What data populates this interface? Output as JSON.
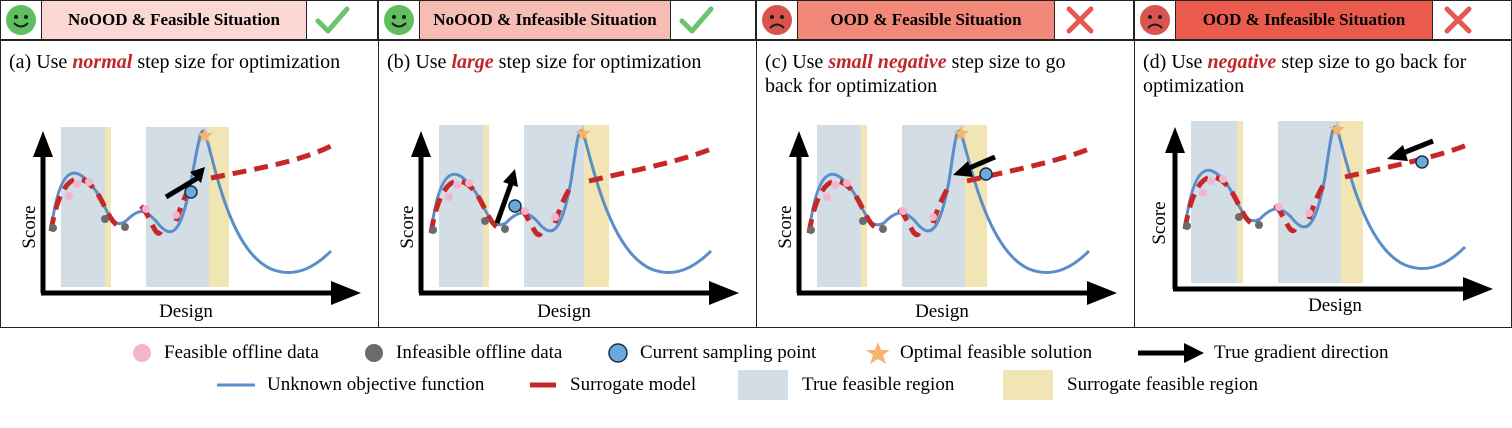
{
  "headers": [
    {
      "face": "happy-face",
      "text": "NoOOD & Feasible Situation",
      "mark": "check",
      "bg": "#fbd8d3"
    },
    {
      "face": "happy-face",
      "text": "NoOOD & Infeasible Situation",
      "mark": "check",
      "bg": "#f7bdb5"
    },
    {
      "face": "sad-face",
      "text": "OOD & Feasible Situation",
      "mark": "cross",
      "bg": "#f2887a"
    },
    {
      "face": "sad-face",
      "text": "OOD & Infeasible Situation",
      "mark": "cross",
      "bg": "#ea5b4d"
    }
  ],
  "panels": [
    {
      "label": "(a)",
      "pre": "Use ",
      "keyword": "normal",
      "post": " step size for optimization"
    },
    {
      "label": "(b)",
      "pre": "Use ",
      "keyword": "large",
      "post": " step size for optimization"
    },
    {
      "label": "(c)",
      "pre": "Use ",
      "keyword": "small negative",
      "post": " step size to go back for optimization"
    },
    {
      "label": "(d)",
      "pre": "Use ",
      "keyword": "negative",
      "post": " step size to go back for optimization"
    }
  ],
  "axes": {
    "x": "Design",
    "y": "Score"
  },
  "legend": {
    "feasible": "Feasible offline data",
    "infeasible": "Infeasible offline data",
    "current": "Current sampling point",
    "optimal": "Optimal feasible solution",
    "gradient": "True gradient direction",
    "objective": "Unknown objective function",
    "surrogate": "Surrogate model",
    "true_region": "True feasible region",
    "surrogate_region": "Surrogate feasible region"
  },
  "colors": {
    "check": "#6cc36e",
    "cross": "#e45a52",
    "happy": "#5fbf5f",
    "sad": "#d9534f",
    "objective": "#5a8ec9",
    "surrogate": "#c62828",
    "true_region": "#d3dde6",
    "surrogate_region": "#f1e5b3",
    "feasible": "#f2b5cf",
    "infeasible": "#6b6b6b",
    "current": "#6aa9d9",
    "optimal": "#f6b36b",
    "keyword": "#c0272d"
  }
}
